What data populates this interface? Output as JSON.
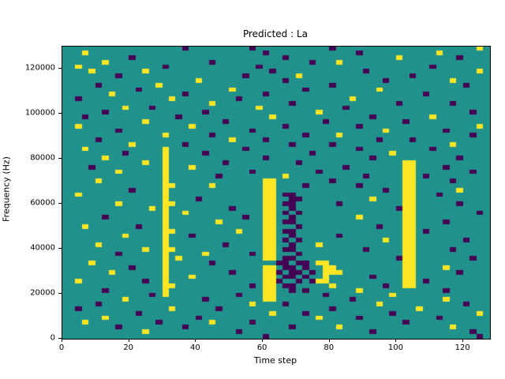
{
  "chart_data": {
    "type": "heatmap",
    "title": "Predicted : La",
    "xlabel": "Time step",
    "ylabel": "Frequency (Hz)",
    "xlim": [
      0,
      128
    ],
    "ylim": [
      0,
      130000
    ],
    "xticks": [
      0,
      20,
      40,
      60,
      80,
      100,
      120
    ],
    "yticks": [
      0,
      20000,
      40000,
      60000,
      80000,
      100000,
      120000
    ],
    "grid": false,
    "legend": "none",
    "colormap": {
      "0": "#21918c",
      "1": "#440154",
      "2": "#fde725"
    },
    "value_legend": {
      "0": "mid (teal)",
      "1": "low (dark purple)",
      "2": "high (yellow)"
    },
    "grid_shape": {
      "rows": 64,
      "cols": 64
    },
    "grid_rows_top_to_bottom": [
      "0000000000000000001000000000100000000000100000000000000000000020",
      "0002000000000000000000000000001000000000000010000000000020000000",
      "0000000000100000000000000000000001000000000000000020000000010000",
      "0000002000000000000000100000000000000100020000000000000000000000",
      "0020000000000001000000000000010000000000000000000000000100000000",
      "0000200000002000000000000000000100000000000001000000000000000020",
      "0000000010000000000000000001000000020000000000000000100000000000",
      "0000000000000000000020000000000001000000000000001000000000200000",
      "0000010000000020000000000000000000000000100000000000000000001000",
      "0000000000010000000000000200000000001000000000020000000000000000",
      "0000000200000000001000000000001000000000000000000000001000000000",
      "0010000000000000200000000010000000000000000200000000000000000000",
      "0000000000000000000000200000000000100000000000000010000000100000",
      "0000000002000100000000000000020000000000001000000000000000000000",
      "0000001000000000000001000000000000000020000000000000000000000100",
      "0001000000000000010000000000000200000000000000100000000200000000",
      "0000000000002000000000001000000000000001000000000001000000000000",
      "0020000000000000000200000000000001000000000010000000000000000020",
      "0000000010000000000000000000100000000000000000002000000001000000",
      "0000000000000002000000100000000000001000020000000000000000000100",
      "0000010000000000000000000200001000000000000000010000100000000000",
      "0000000000200000001000000000000000100000100000000000000000200000",
      "0002000000000002000000000001000000000000000010000000000100000000",
      "0000000001000002000001000000000000000100000000000200000000000000",
      "0000002000000002000000000000001000000000000000100000000000010000",
      "0000000000002002000000001000000000010000000000000002200000000000",
      "0000100000000002000200000000000000000000001000000002200001000000",
      "0000000020000002000000000000100000000010000000000002200000000100",
      "0000000000000002000000010000000002000000000001000002201000000000",
      "0000020000000002000000000000002200000000100000000002200000100000",
      "0000000000000002200000200000002200001000000010000002200000000000",
      "0000000000100002000000000000002200000000000000001002200000020000",
      "0020000000000002000000000000002201100000000000000002200010000000",
      "0000000000000002000010000000002200110000000000200002200000000000",
      "0000000020000002200000000000002201100000010000000002200000010000",
      "0000000000000202000000000100002200100000000000000012200000000000",
      "0000000000000002002000000000002201010000000000000002200000000010",
      "0000001000000002000000000001002200100000000020000002200000000000",
      "0000000000000002000000020000002201100000000000000002200001000000",
      "0002000000010002000000000000002200010000000000010002200000000000",
      "0000000000000002200000000020002201100000000000000002201000000000",
      "0000000002000002000100000000002200100000010000000002200000000000",
      "0000000000000002000000000000002201010000000000002002200000001000",
      "0000020000000002000000001000002200100020000000000002200000000000",
      "0000000000002002200000000000002201100000000001000002200000100000",
      "0000000010000002000002000000102200010000000000000002200000000000",
      "0000000000000002020000000000002201100000000000000012200000000100",
      "0000200000000002000000100000000011011022000000000002200000000000",
      "0000000000100002000000000000002201101002200000000002200002000000",
      "0000000200000002000000000100002210110102220000000002200000010000",
      "0000000000000002000200000000002201101002000000100002200000000000",
      "0020000000001002000000000000002210010122000000000002201000000000",
      "0000000000000002200000000000102201100000200000001002200000000000",
      "0000001000000002000000000000002200101000000020000000000001000000",
      "0000000000000102000000000010002200000001000000000200000000000000",
      "0000000002000000000001000000002200000000000100000000000002000000",
      "0000010000000000000000000000200001000000000000020000000000001000",
      "0010000000000000200000010000000000000000100000000000020000000000",
      "0000000000010000000000000000000200001000000000000100000000000020",
      "0000002000000000000010000000000000000020000010000000000010000000",
      "0002000000000010000000200000100000000000000000000001000000000000",
      "0000000010000000001000000000000000100000020000000000000000200000",
      "0000000000002000000000000010000000000000000000100000000000000100",
      "0000000000000000000000000000001000000000000000000000000000000010"
    ]
  }
}
